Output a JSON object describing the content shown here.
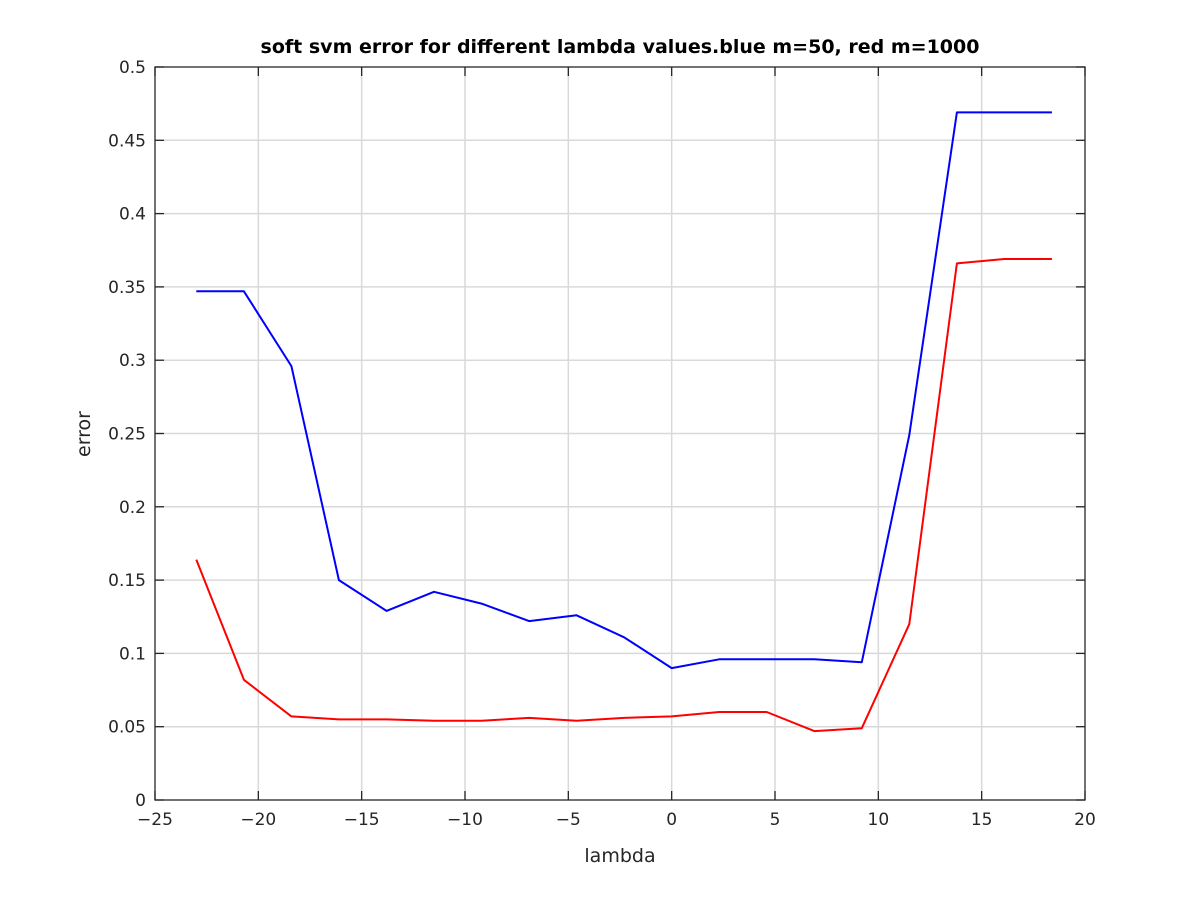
{
  "chart_data": {
    "type": "line",
    "title": "soft svm error for different lambda values.blue m=50, red m=1000",
    "xlabel": "lambda",
    "ylabel": "error",
    "xlim": [
      -25,
      20
    ],
    "ylim": [
      0,
      0.5
    ],
    "xticks": [
      -25,
      -20,
      -15,
      -10,
      -5,
      0,
      5,
      10,
      15,
      20
    ],
    "yticks": [
      0,
      0.05,
      0.1,
      0.15,
      0.2,
      0.25,
      0.3,
      0.35,
      0.4,
      0.45,
      0.5
    ],
    "xtick_labels": [
      "−25",
      "−20",
      "−15",
      "−10",
      "−5",
      "0",
      "5",
      "10",
      "15",
      "20"
    ],
    "ytick_labels": [
      "0",
      "0.05",
      "0.1",
      "0.15",
      "0.2",
      "0.25",
      "0.3",
      "0.35",
      "0.4",
      "0.45",
      "0.5"
    ],
    "grid": true,
    "x": [
      -23,
      -20.7,
      -18.4,
      -16.1,
      -13.8,
      -11.5,
      -9.2,
      -6.9,
      -4.6,
      -2.3,
      0,
      2.3,
      4.6,
      6.9,
      9.2,
      11.5,
      13.8,
      16.1,
      18.4
    ],
    "series": [
      {
        "color": "#0000ff",
        "values": [
          0.347,
          0.347,
          0.296,
          0.15,
          0.129,
          0.142,
          0.134,
          0.122,
          0.126,
          0.111,
          0.09,
          0.096,
          0.096,
          0.096,
          0.094,
          0.249,
          0.469,
          0.469,
          0.469
        ]
      },
      {
        "color": "#ff0000",
        "values": [
          0.164,
          0.082,
          0.057,
          0.055,
          0.055,
          0.054,
          0.054,
          0.056,
          0.054,
          0.056,
          0.057,
          0.06,
          0.06,
          0.047,
          0.049,
          0.12,
          0.366,
          0.369,
          0.369
        ]
      }
    ]
  }
}
